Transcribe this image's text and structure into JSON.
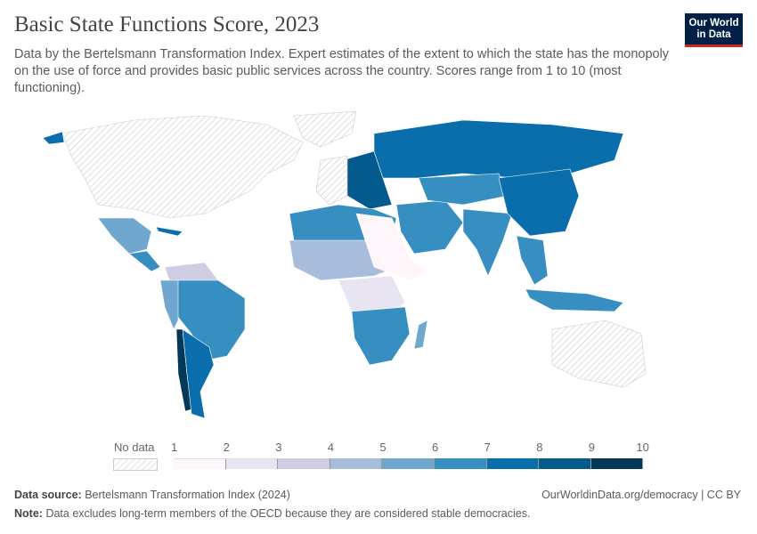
{
  "header": {
    "title": "Basic State Functions Score, 2023",
    "subtitle": "Data by the Bertelsmann Transformation Index. Expert estimates of the extent to which the state has the monopoly on the use of force and provides basic public services across the country. Scores range from 1 to 10 (most functioning).",
    "logo_line1": "Our World",
    "logo_line2": "in Data"
  },
  "legend": {
    "no_data_label": "No data",
    "ticks": [
      "1",
      "2",
      "3",
      "4",
      "5",
      "6",
      "7",
      "8",
      "9",
      "10"
    ],
    "colors": [
      "#fef6fb",
      "#e8e4f2",
      "#cfcde4",
      "#a8bcdb",
      "#6fa7cf",
      "#368fc0",
      "#0a6ead",
      "#045a8d",
      "#023858"
    ]
  },
  "footer": {
    "source_label": "Data source:",
    "source": "Bertelsmann Transformation Index (2024)",
    "note_label": "Note:",
    "note": "Data excludes long-term members of the OECD because they are considered stable democracies.",
    "url": "OurWorldinData.org/democracy | CC BY"
  }
}
